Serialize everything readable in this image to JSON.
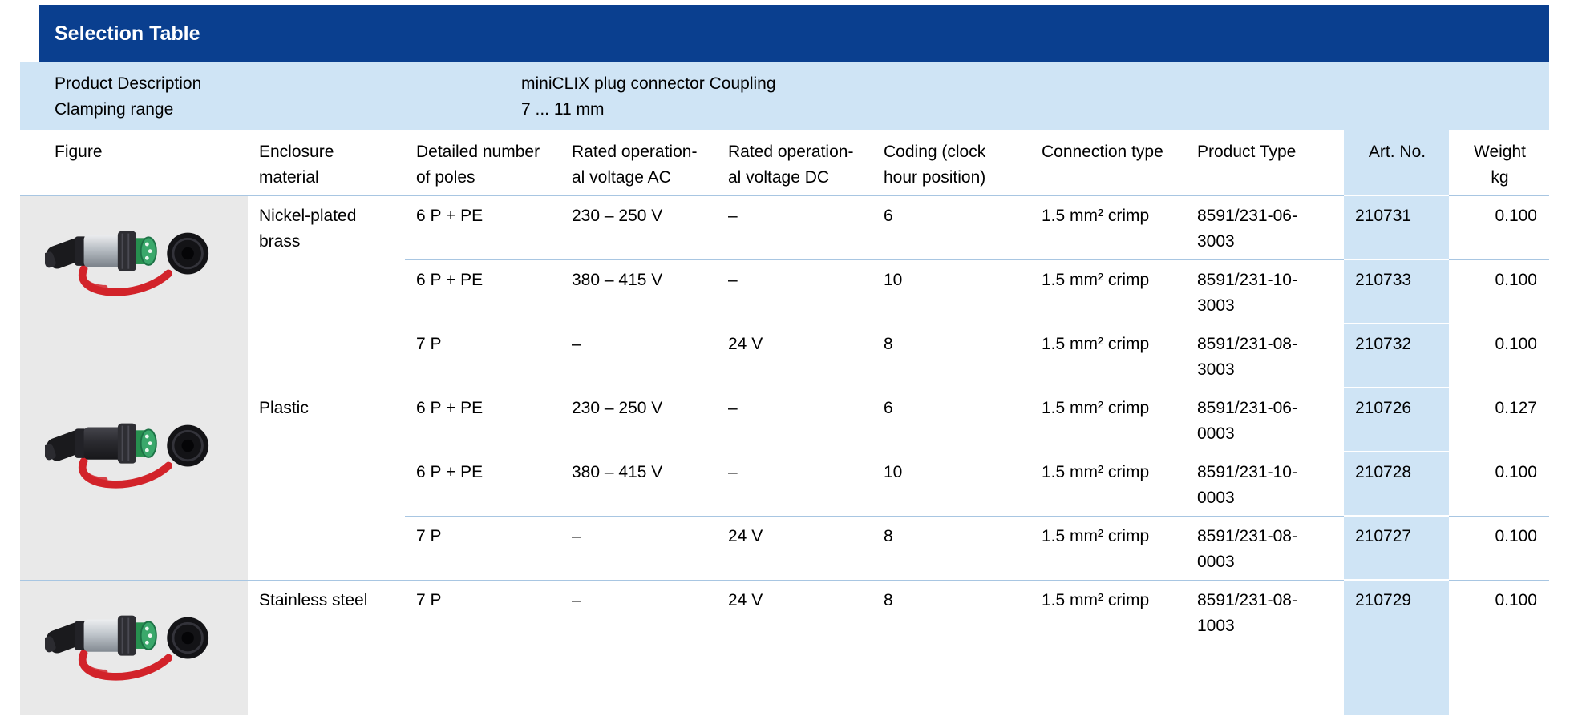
{
  "section": {
    "title": "Selection Table"
  },
  "info": {
    "rows": [
      {
        "label": "Product Description",
        "value": "miniCLIX plug connector Coupling"
      },
      {
        "label": "Clamping range",
        "value": "7 ... 11 mm"
      }
    ]
  },
  "colors": {
    "title_bar_blue": "#0a3f8f",
    "band_light_blue": "#cfe4f5",
    "figure_column_gray": "#e9e9e9",
    "row_separator_blue": "#a8c6e2",
    "strap_red": "#d2232a",
    "insert_green": "#2f9e63"
  },
  "table": {
    "columns": [
      {
        "key": "figure",
        "label": "Figure"
      },
      {
        "key": "material",
        "label": "Enclosure\nmaterial"
      },
      {
        "key": "poles",
        "label": "Detailed number\nof poles"
      },
      {
        "key": "voltage_ac",
        "label": "Rated operation-\nal voltage AC"
      },
      {
        "key": "voltage_dc",
        "label": "Rated operation-\nal voltage DC"
      },
      {
        "key": "coding",
        "label": "Coding (clock\nhour position)"
      },
      {
        "key": "connection",
        "label": "Connection type"
      },
      {
        "key": "product_type",
        "label": "Product Type"
      },
      {
        "key": "art_no",
        "label": "Art. No."
      },
      {
        "key": "weight",
        "label": "Weight\nkg"
      }
    ],
    "groups": [
      {
        "figure": {
          "icon": "plug-connector-photo",
          "variant": "nickel-plated-brass",
          "body_light": "#ecedef",
          "body_color": "#b7bdc3",
          "body_dark": "#798088",
          "ring_color": "#2e2e33"
        },
        "material": "Nickel-plated\nbrass",
        "rows": [
          {
            "poles": "6 P + PE",
            "voltage_ac": "230 – 250 V",
            "voltage_dc": "–",
            "coding": "6",
            "connection": "1.5 mm² crimp",
            "product_type": "8591/231-06-\n3003",
            "art_no": "210731",
            "weight": "0.100"
          },
          {
            "poles": "6 P + PE",
            "voltage_ac": "380 – 415 V",
            "voltage_dc": "–",
            "coding": "10",
            "connection": "1.5 mm² crimp",
            "product_type": "8591/231-10-\n3003",
            "art_no": "210733",
            "weight": "0.100"
          },
          {
            "poles": "7 P",
            "voltage_ac": "–",
            "voltage_dc": "24 V",
            "coding": "8",
            "connection": "1.5 mm² crimp",
            "product_type": "8591/231-08-\n3003",
            "art_no": "210732",
            "weight": "0.100"
          }
        ]
      },
      {
        "figure": {
          "icon": "plug-connector-photo",
          "variant": "plastic",
          "body_light": "#45454c",
          "body_color": "#2b2b30",
          "body_dark": "#17171a",
          "ring_color": "#2e2e33"
        },
        "material": "Plastic",
        "rows": [
          {
            "poles": "6 P + PE",
            "voltage_ac": "230 – 250 V",
            "voltage_dc": "–",
            "coding": "6",
            "connection": "1.5 mm² crimp",
            "product_type": "8591/231-06-\n0003",
            "art_no": "210726",
            "weight": "0.127"
          },
          {
            "poles": "6 P + PE",
            "voltage_ac": "380 – 415 V",
            "voltage_dc": "–",
            "coding": "10",
            "connection": "1.5 mm² crimp",
            "product_type": "8591/231-10-\n0003",
            "art_no": "210728",
            "weight": "0.100"
          },
          {
            "poles": "7 P",
            "voltage_ac": "–",
            "voltage_dc": "24 V",
            "coding": "8",
            "connection": "1.5 mm² crimp",
            "product_type": "8591/231-08-\n0003",
            "art_no": "210727",
            "weight": "0.100"
          }
        ]
      },
      {
        "figure": {
          "icon": "plug-connector-photo",
          "variant": "stainless-steel",
          "body_light": "#eceef0",
          "body_color": "#c0c6cc",
          "body_dark": "#828991",
          "ring_color": "#2e2e33"
        },
        "material": "Stainless steel",
        "rows": [
          {
            "poles": "7 P",
            "voltage_ac": "–",
            "voltage_dc": "24 V",
            "coding": "8",
            "connection": "1.5 mm² crimp",
            "product_type": "8591/231-08-\n1003",
            "art_no": "210729",
            "weight": "0.100"
          }
        ]
      }
    ]
  }
}
